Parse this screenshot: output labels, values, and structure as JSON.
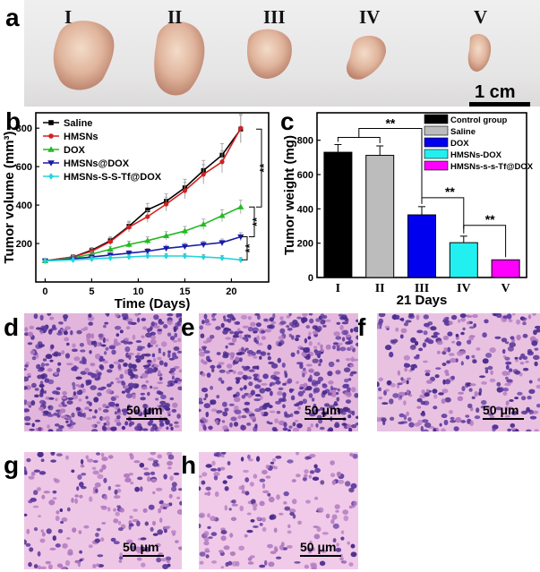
{
  "panels": {
    "a": "a",
    "b": "b",
    "c": "c",
    "d": "d",
    "e": "e",
    "f": "f",
    "g": "g",
    "h": "h"
  },
  "photo": {
    "group_labels": [
      "I",
      "II",
      "III",
      "IV",
      "V"
    ],
    "scale_label": "1 cm"
  },
  "micrographs": [
    {
      "label": "d",
      "scale": "50 μm"
    },
    {
      "label": "e",
      "scale": "50 μm"
    },
    {
      "label": "f",
      "scale": "50 μm"
    },
    {
      "label": "g",
      "scale": "50 μm"
    },
    {
      "label": "h",
      "scale": "50 μm"
    }
  ],
  "chart_data": [
    {
      "type": "line",
      "title": "",
      "xlabel": "Time (Days)",
      "ylabel": "Tumor volume (mm³)",
      "xlim": [
        -1,
        24
      ],
      "ylim": [
        0,
        880
      ],
      "xticks": [
        0,
        5,
        10,
        15,
        20
      ],
      "yticks": [
        200,
        400,
        600,
        800
      ],
      "x": [
        0,
        3,
        5,
        7,
        9,
        11,
        13,
        15,
        17,
        19,
        21
      ],
      "series": [
        {
          "name": "Saline",
          "color": "#000000",
          "marker": "square",
          "values": [
            110,
            130,
            165,
            215,
            290,
            375,
            420,
            490,
            580,
            660,
            795
          ]
        },
        {
          "name": "HMSNs",
          "color": "#d42020",
          "marker": "circle",
          "values": [
            110,
            130,
            160,
            210,
            285,
            340,
            405,
            475,
            560,
            625,
            800
          ]
        },
        {
          "name": "DOX",
          "color": "#22bb22",
          "marker": "triangle-up",
          "values": [
            110,
            125,
            145,
            170,
            195,
            215,
            240,
            265,
            300,
            345,
            390
          ]
        },
        {
          "name": "HMSNs@DOX",
          "color": "#1a1aa8",
          "marker": "triangle-down",
          "values": [
            110,
            120,
            130,
            140,
            150,
            160,
            175,
            185,
            195,
            205,
            235
          ]
        },
        {
          "name": "HMSNs-S-S-Tf@DOX",
          "color": "#22d4dc",
          "marker": "diamond",
          "values": [
            110,
            115,
            120,
            125,
            130,
            135,
            135,
            135,
            130,
            125,
            115
          ]
        }
      ],
      "significance": [
        "**",
        "**",
        "**"
      ]
    },
    {
      "type": "bar",
      "title": "",
      "xlabel": "21 Days",
      "ylabel": "Tumor weight (mg)",
      "ylim": [
        0,
        960
      ],
      "yticks": [
        0,
        200,
        400,
        600,
        800
      ],
      "categories": [
        "I",
        "II",
        "III",
        "IV",
        "V"
      ],
      "values": [
        730,
        712,
        365,
        203,
        103
      ],
      "errors": [
        45,
        55,
        48,
        38,
        0
      ],
      "legend": [
        "Control group",
        "Saline",
        "DOX",
        "HMSNs-DOX",
        "HMSNs-s-s-Tf@DOX"
      ],
      "colors": [
        "#000000",
        "#bcbcbc",
        "#0000ee",
        "#22f0f0",
        "#ff00ff"
      ],
      "significance": [
        "**",
        "**",
        "**"
      ]
    }
  ]
}
